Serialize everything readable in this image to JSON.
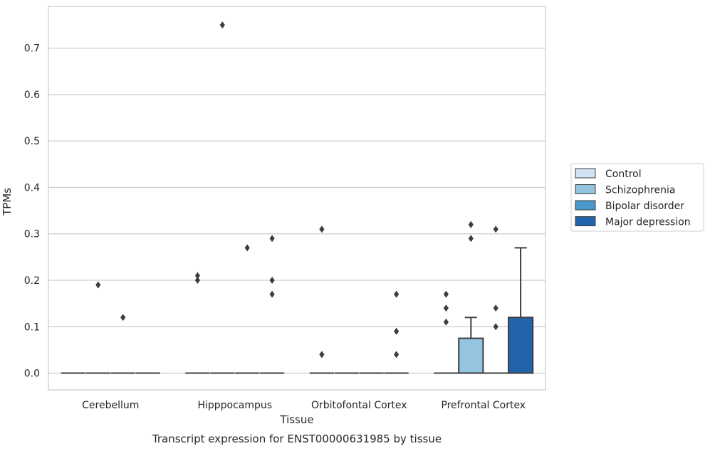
{
  "chart_data": {
    "type": "box",
    "title": "",
    "caption": "Transcript expression for ENST00000631985 by tissue",
    "xlabel": "Tissue",
    "ylabel": "TPMs",
    "ylim": [
      -0.036,
      0.79
    ],
    "yticks": [
      0.0,
      0.1,
      0.2,
      0.3,
      0.4,
      0.5,
      0.6,
      0.7
    ],
    "ytick_labels": [
      "0.0",
      "0.1",
      "0.2",
      "0.3",
      "0.4",
      "0.5",
      "0.6",
      "0.7"
    ],
    "grid": true,
    "legend_position": "right",
    "categories": [
      "Cerebellum",
      "Hipppocampus",
      "Orbitofontal Cortex",
      "Prefrontal Cortex"
    ],
    "series": [
      {
        "name": "Control",
        "color": "#d0e1f2"
      },
      {
        "name": "Schizophrenia",
        "color": "#94c4df"
      },
      {
        "name": "Bipolar disorder",
        "color": "#4a98c9"
      },
      {
        "name": "Major depression",
        "color": "#2264aa"
      }
    ],
    "boxes": [
      {
        "category": 0,
        "series": 0,
        "q1": 0,
        "median": 0,
        "q3": 0,
        "whisker_low": 0,
        "whisker_high": 0,
        "outliers": []
      },
      {
        "category": 0,
        "series": 1,
        "q1": 0,
        "median": 0,
        "q3": 0,
        "whisker_low": 0,
        "whisker_high": 0,
        "outliers": [
          0.19
        ]
      },
      {
        "category": 0,
        "series": 2,
        "q1": 0,
        "median": 0,
        "q3": 0,
        "whisker_low": 0,
        "whisker_high": 0,
        "outliers": [
          0.12
        ]
      },
      {
        "category": 0,
        "series": 3,
        "q1": 0,
        "median": 0,
        "q3": 0,
        "whisker_low": 0,
        "whisker_high": 0,
        "outliers": []
      },
      {
        "category": 1,
        "series": 0,
        "q1": 0,
        "median": 0,
        "q3": 0,
        "whisker_low": 0,
        "whisker_high": 0,
        "outliers": [
          0.2,
          0.21
        ]
      },
      {
        "category": 1,
        "series": 1,
        "q1": 0,
        "median": 0,
        "q3": 0,
        "whisker_low": 0,
        "whisker_high": 0,
        "outliers": [
          0.75
        ]
      },
      {
        "category": 1,
        "series": 2,
        "q1": 0,
        "median": 0,
        "q3": 0,
        "whisker_low": 0,
        "whisker_high": 0,
        "outliers": [
          0.27
        ]
      },
      {
        "category": 1,
        "series": 3,
        "q1": 0,
        "median": 0,
        "q3": 0,
        "whisker_low": 0,
        "whisker_high": 0,
        "outliers": [
          0.17,
          0.2,
          0.29
        ]
      },
      {
        "category": 2,
        "series": 0,
        "q1": 0,
        "median": 0,
        "q3": 0,
        "whisker_low": 0,
        "whisker_high": 0,
        "outliers": [
          0.04,
          0.31
        ]
      },
      {
        "category": 2,
        "series": 1,
        "q1": 0,
        "median": 0,
        "q3": 0,
        "whisker_low": 0,
        "whisker_high": 0,
        "outliers": []
      },
      {
        "category": 2,
        "series": 2,
        "q1": 0,
        "median": 0,
        "q3": 0,
        "whisker_low": 0,
        "whisker_high": 0,
        "outliers": []
      },
      {
        "category": 2,
        "series": 3,
        "q1": 0,
        "median": 0,
        "q3": 0,
        "whisker_low": 0,
        "whisker_high": 0,
        "outliers": [
          0.04,
          0.09,
          0.17
        ]
      },
      {
        "category": 3,
        "series": 0,
        "q1": 0,
        "median": 0,
        "q3": 0,
        "whisker_low": 0,
        "whisker_high": 0,
        "outliers": [
          0.11,
          0.14,
          0.17
        ]
      },
      {
        "category": 3,
        "series": 1,
        "q1": 0,
        "median": 0,
        "q3": 0.075,
        "whisker_low": 0,
        "whisker_high": 0.12,
        "outliers": [
          0.29,
          0.32
        ]
      },
      {
        "category": 3,
        "series": 2,
        "q1": 0,
        "median": 0,
        "q3": 0,
        "whisker_low": 0,
        "whisker_high": 0,
        "outliers": [
          0.1,
          0.14,
          0.31
        ]
      },
      {
        "category": 3,
        "series": 3,
        "q1": 0,
        "median": 0,
        "q3": 0.12,
        "whisker_low": 0,
        "whisker_high": 0.27,
        "outliers": []
      }
    ]
  }
}
